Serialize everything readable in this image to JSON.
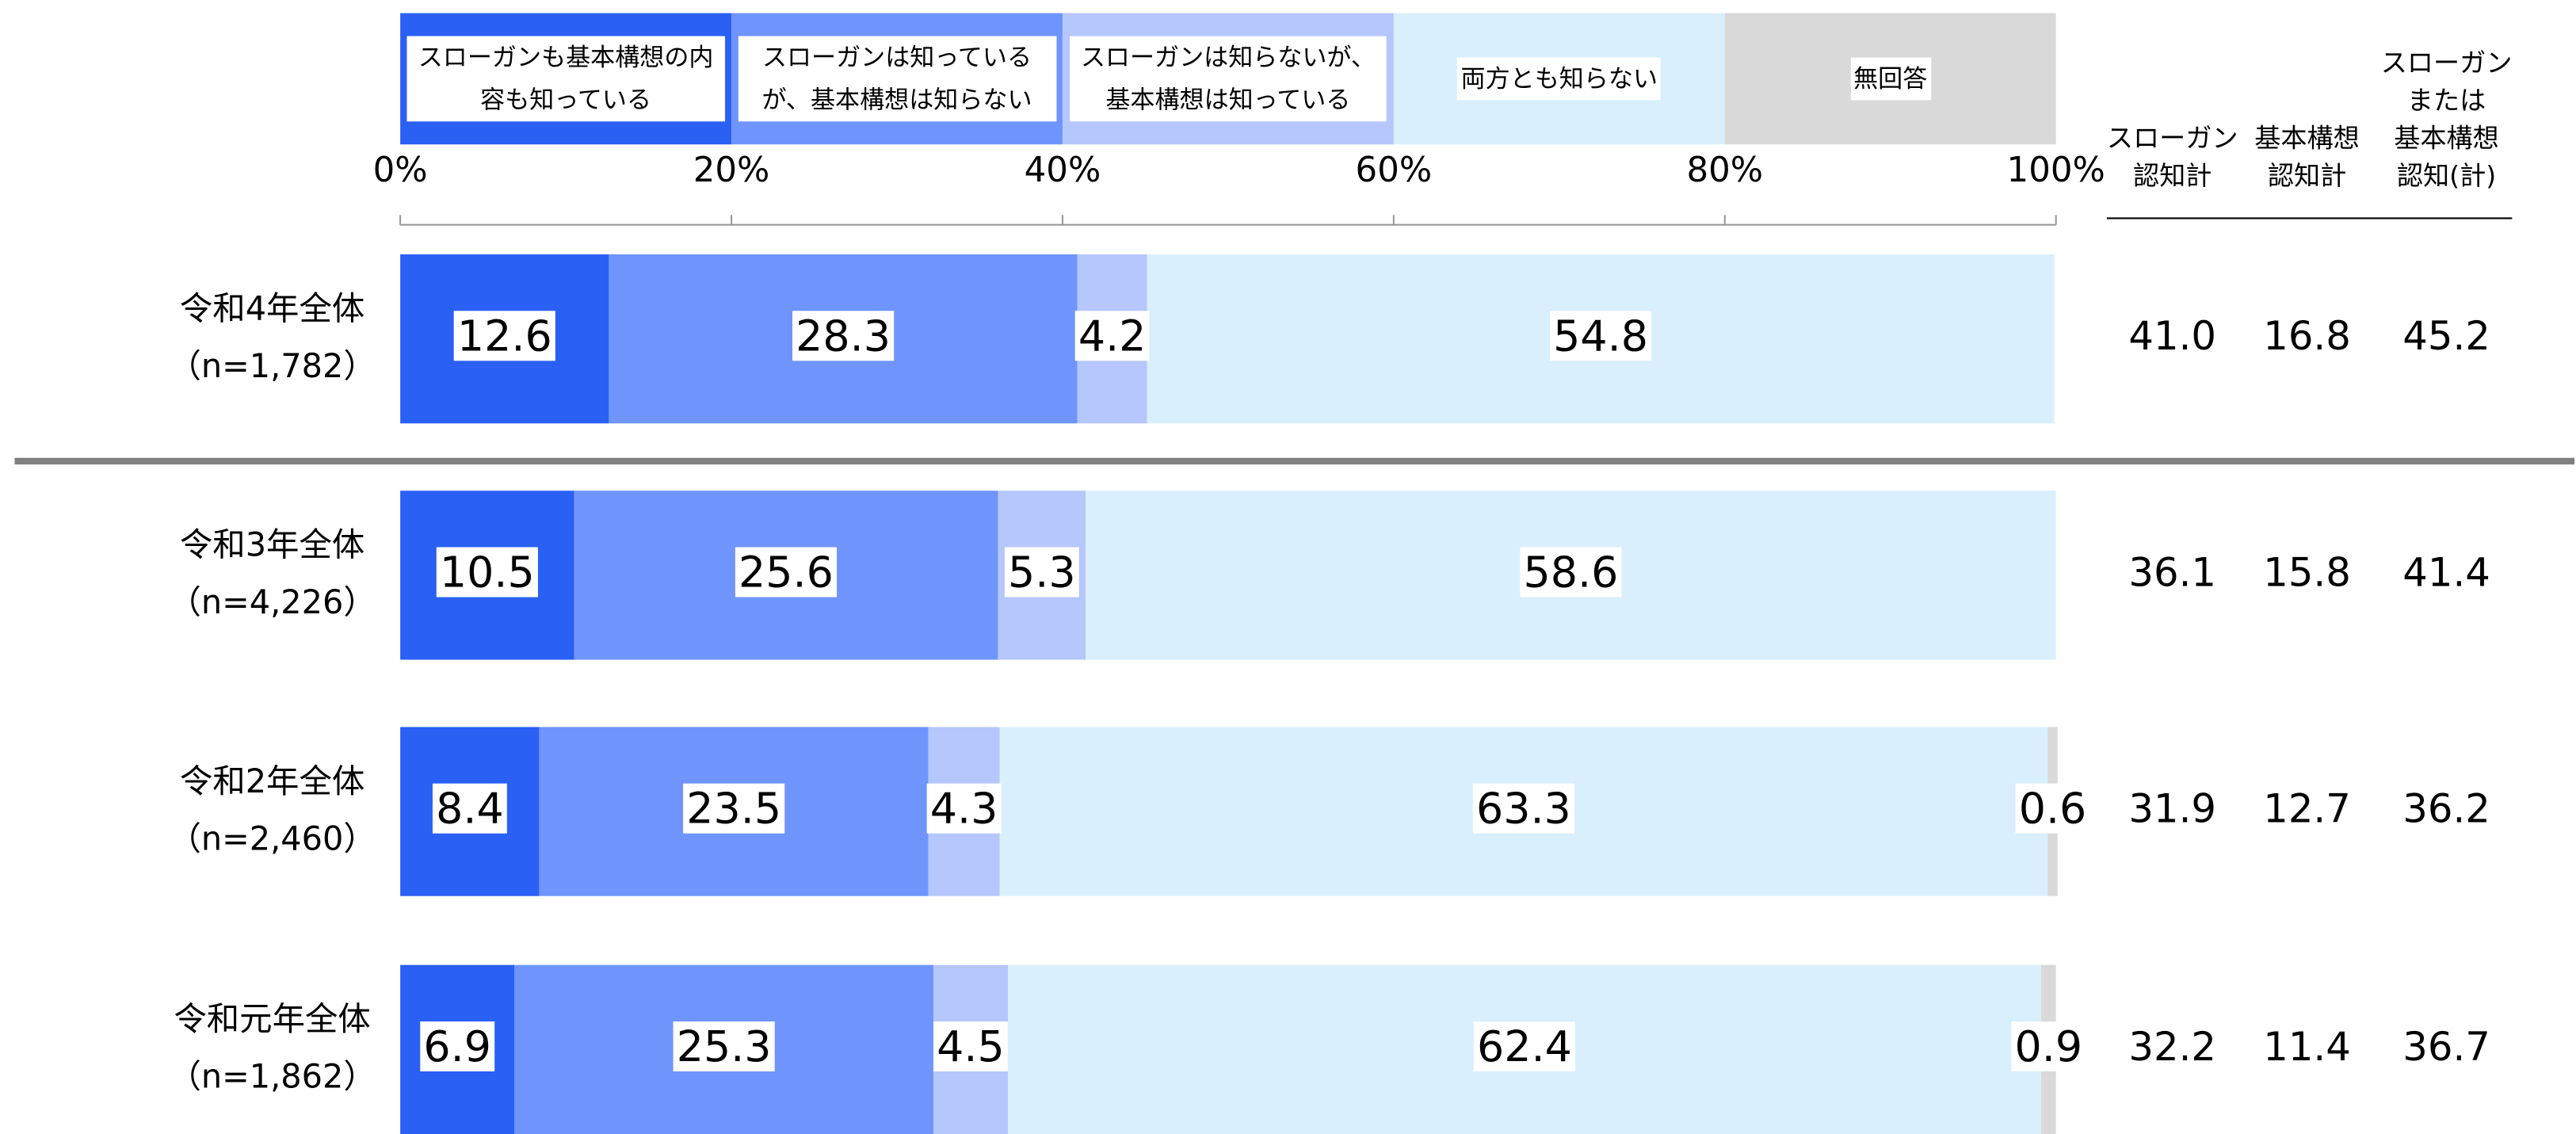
{
  "chart_data": {
    "type": "stacked-barh",
    "categories": [
      "令和4年全体",
      "令和3年全体",
      "令和2年全体",
      "令和元年全体"
    ],
    "sample_labels": [
      "（n=1,782）",
      "（n=4,226）",
      "（n=2,460）",
      "（n=1,862）"
    ],
    "series": [
      {
        "name": "スローガンも基本構想の内容も知っている",
        "color": "#2b60f5",
        "values": [
          12.6,
          10.5,
          8.4,
          6.9
        ]
      },
      {
        "name": "スローガンは知っているが、基本構想は知らない",
        "color": "#6f95fd",
        "values": [
          28.3,
          25.6,
          23.5,
          25.3
        ]
      },
      {
        "name": "スローガンは知らないが、基本構想は知っている",
        "color": "#b5c7fc",
        "values": [
          4.2,
          5.3,
          4.3,
          4.5
        ]
      },
      {
        "name": "両方とも知らない",
        "color": "#d9effc",
        "values": [
          54.8,
          58.6,
          63.3,
          62.4
        ]
      },
      {
        "name": "無回答",
        "color": "#d9d9d9",
        "values": [
          null,
          null,
          0.6,
          0.9
        ]
      }
    ],
    "xlim": [
      0,
      100
    ],
    "xticks": [
      {
        "value": 0,
        "label": "0%"
      },
      {
        "value": 20,
        "label": "20%"
      },
      {
        "value": 40,
        "label": "40%"
      },
      {
        "value": 60,
        "label": "60%"
      },
      {
        "value": 80,
        "label": "80%"
      },
      {
        "value": 100,
        "label": "100%"
      }
    ],
    "summary": {
      "headers": [
        [
          "スローガン",
          "認知計"
        ],
        [
          "基本構想",
          "認知計"
        ],
        [
          "スローガン",
          "または",
          "基本構想",
          "認知(計)"
        ]
      ],
      "rows": [
        [
          "41.0",
          "16.8",
          "45.2"
        ],
        [
          "36.1",
          "15.8",
          "41.4"
        ],
        [
          "31.9",
          "12.7",
          "36.2"
        ],
        [
          "32.2",
          "11.4",
          "36.7"
        ]
      ]
    }
  }
}
